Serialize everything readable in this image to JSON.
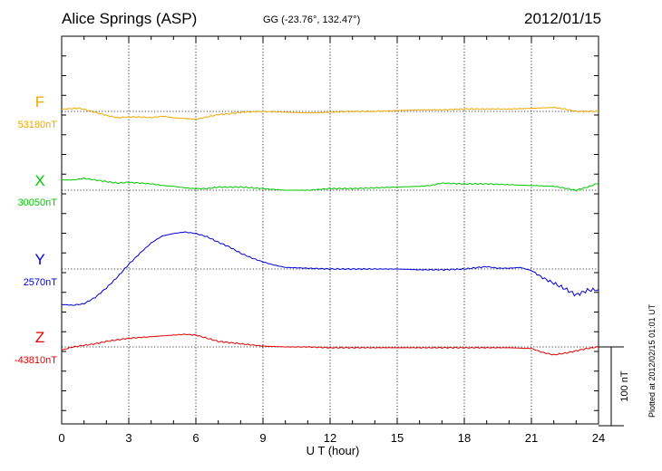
{
  "header": {
    "station": "Alice Springs (ASP)",
    "coords": "GG (-23.76°, 132.47°)",
    "date": "2012/01/15"
  },
  "footer": "Plotted at 2012/02/15 01:01  UT",
  "chart_data": {
    "type": "line",
    "xlabel": "U T (hour)",
    "xlim": [
      0,
      24
    ],
    "xticks": [
      0,
      3,
      6,
      9,
      12,
      15,
      18,
      21,
      24
    ],
    "scale_bar": {
      "label": "100 nT",
      "nT": 100
    },
    "grid": true,
    "series": [
      {
        "name": "F",
        "baseline_label": "53180nT",
        "baseline_nT": 53180,
        "color": "#f0a800",
        "points": [
          [
            0,
            53183
          ],
          [
            0.8,
            53184
          ],
          [
            1.5,
            53179
          ],
          [
            2,
            53175
          ],
          [
            2.5,
            53172
          ],
          [
            3,
            53173
          ],
          [
            3.5,
            53173
          ],
          [
            4,
            53172
          ],
          [
            4.5,
            53174
          ],
          [
            5,
            53172
          ],
          [
            5.5,
            53171
          ],
          [
            6,
            53170
          ],
          [
            6.5,
            53173
          ],
          [
            7,
            53176
          ],
          [
            7.5,
            53177
          ],
          [
            8,
            53179
          ],
          [
            9,
            53180
          ],
          [
            10,
            53179
          ],
          [
            11,
            53178
          ],
          [
            12,
            53179
          ],
          [
            13,
            53180
          ],
          [
            14,
            53180
          ],
          [
            15,
            53181
          ],
          [
            16,
            53182
          ],
          [
            17,
            53182
          ],
          [
            18,
            53183
          ],
          [
            19,
            53183
          ],
          [
            20,
            53183
          ],
          [
            21,
            53184
          ],
          [
            22,
            53185
          ],
          [
            22.5,
            53183
          ],
          [
            23,
            53180
          ],
          [
            23.5,
            53180
          ],
          [
            24,
            53180
          ]
        ]
      },
      {
        "name": "X",
        "baseline_label": "30050nT",
        "baseline_nT": 30050,
        "color": "#00c800",
        "points": [
          [
            0,
            30063
          ],
          [
            0.5,
            30063
          ],
          [
            1,
            30065
          ],
          [
            1.5,
            30063
          ],
          [
            2,
            30061
          ],
          [
            2.5,
            30059
          ],
          [
            3,
            30060
          ],
          [
            3.5,
            30059
          ],
          [
            4,
            30058
          ],
          [
            4.5,
            30056
          ],
          [
            5,
            30055
          ],
          [
            5.5,
            30053
          ],
          [
            6,
            30052
          ],
          [
            6.5,
            30052
          ],
          [
            7,
            30054
          ],
          [
            7.5,
            30054
          ],
          [
            8,
            30054
          ],
          [
            9,
            30052
          ],
          [
            10,
            30050
          ],
          [
            11,
            30050
          ],
          [
            12,
            30052
          ],
          [
            13,
            30052
          ],
          [
            14,
            30053
          ],
          [
            15,
            30054
          ],
          [
            16,
            30055
          ],
          [
            16.5,
            30056
          ],
          [
            17,
            30059
          ],
          [
            18,
            30058
          ],
          [
            19,
            30058
          ],
          [
            20,
            30057
          ],
          [
            21,
            30056
          ],
          [
            22,
            30055
          ],
          [
            23,
            30050
          ],
          [
            23.5,
            30054
          ],
          [
            24,
            30059
          ]
        ]
      },
      {
        "name": "Y",
        "baseline_label": "2570nT",
        "baseline_nT": 2570,
        "color": "#0000d8",
        "points": [
          [
            0,
            2525
          ],
          [
            0.5,
            2524
          ],
          [
            1,
            2526
          ],
          [
            1.5,
            2534
          ],
          [
            2,
            2546
          ],
          [
            2.5,
            2560
          ],
          [
            3,
            2576
          ],
          [
            3.5,
            2590
          ],
          [
            4,
            2603
          ],
          [
            4.5,
            2612
          ],
          [
            5,
            2615
          ],
          [
            5.5,
            2617
          ],
          [
            6,
            2615
          ],
          [
            6.5,
            2611
          ],
          [
            7,
            2604
          ],
          [
            7.5,
            2598
          ],
          [
            8,
            2590
          ],
          [
            8.5,
            2584
          ],
          [
            9,
            2579
          ],
          [
            9.5,
            2575
          ],
          [
            10,
            2572
          ],
          [
            11,
            2571
          ],
          [
            12,
            2570
          ],
          [
            13,
            2570
          ],
          [
            14,
            2570
          ],
          [
            15,
            2570
          ],
          [
            16,
            2569
          ],
          [
            17,
            2569
          ],
          [
            18,
            2570
          ],
          [
            19,
            2573
          ],
          [
            19.5,
            2571
          ],
          [
            20,
            2571
          ],
          [
            20.5,
            2572
          ],
          [
            21,
            2568
          ],
          [
            21.5,
            2559
          ],
          [
            22,
            2552
          ],
          [
            22.5,
            2545
          ],
          [
            23,
            2537
          ],
          [
            23.5,
            2543
          ],
          [
            24,
            2544
          ]
        ]
      },
      {
        "name": "Z",
        "baseline_label": "-43810nT",
        "baseline_nT": -43810,
        "color": "#e00000",
        "points": [
          [
            0,
            -43814
          ],
          [
            0.5,
            -43810
          ],
          [
            1,
            -43808
          ],
          [
            1.5,
            -43806
          ],
          [
            2,
            -43803
          ],
          [
            2.5,
            -43801
          ],
          [
            3,
            -43799
          ],
          [
            4,
            -43797
          ],
          [
            4.5,
            -43796
          ],
          [
            5,
            -43795
          ],
          [
            5.5,
            -43794
          ],
          [
            6,
            -43795
          ],
          [
            6.5,
            -43799
          ],
          [
            7,
            -43803
          ],
          [
            8,
            -43806
          ],
          [
            9,
            -43809
          ],
          [
            10,
            -43810
          ],
          [
            11,
            -43810
          ],
          [
            12,
            -43811
          ],
          [
            14,
            -43811
          ],
          [
            16,
            -43811
          ],
          [
            18,
            -43811
          ],
          [
            20,
            -43811
          ],
          [
            21,
            -43812
          ],
          [
            21.5,
            -43817
          ],
          [
            22,
            -43820
          ],
          [
            22.5,
            -43818
          ],
          [
            23,
            -43815
          ],
          [
            23.5,
            -43812
          ],
          [
            24,
            -43810
          ]
        ]
      }
    ]
  }
}
